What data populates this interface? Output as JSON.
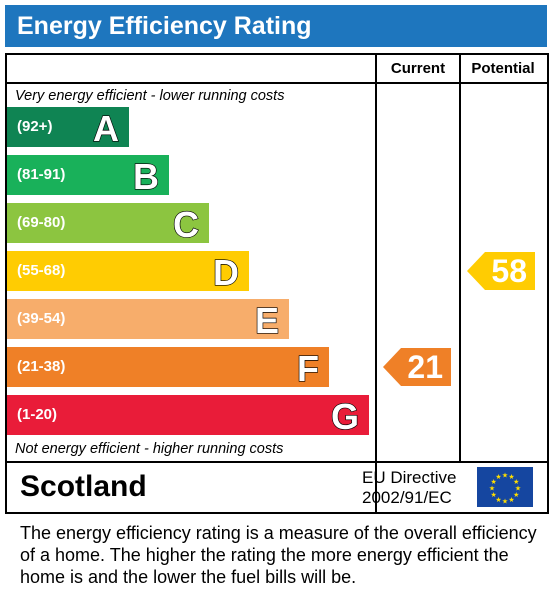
{
  "header": {
    "title": "Energy Efficiency Rating"
  },
  "columns": {
    "current": "Current",
    "potential": "Potential"
  },
  "notes": {
    "top": "Very energy efficient - lower running costs",
    "bottom": "Not energy efficient - higher running costs"
  },
  "footer": {
    "region": "Scotland",
    "directive_line1": "EU Directive",
    "directive_line2": "2002/91/EC"
  },
  "caption": "The energy efficiency rating is a measure of the overall efficiency of a home.  The higher the rating the more energy efficient the home is and the lower the fuel bills will be.",
  "chart_data": {
    "type": "bar",
    "title": "Energy Efficiency Rating",
    "bands": [
      {
        "letter": "A",
        "range": "(92+)",
        "color": "#0f8453"
      },
      {
        "letter": "B",
        "range": "(81-91)",
        "color": "#19b15a"
      },
      {
        "letter": "C",
        "range": "(69-80)",
        "color": "#8cc540"
      },
      {
        "letter": "D",
        "range": "(55-68)",
        "color": "#ffcc02"
      },
      {
        "letter": "E",
        "range": "(39-54)",
        "color": "#f7ad6b"
      },
      {
        "letter": "F",
        "range": "(21-38)",
        "color": "#ef8027"
      },
      {
        "letter": "G",
        "range": "(1-20)",
        "color": "#e91c39"
      }
    ],
    "current": {
      "value": 21,
      "band": "F",
      "color": "#ef8027"
    },
    "potential": {
      "value": 58,
      "band": "D",
      "color": "#ffcc02"
    }
  }
}
